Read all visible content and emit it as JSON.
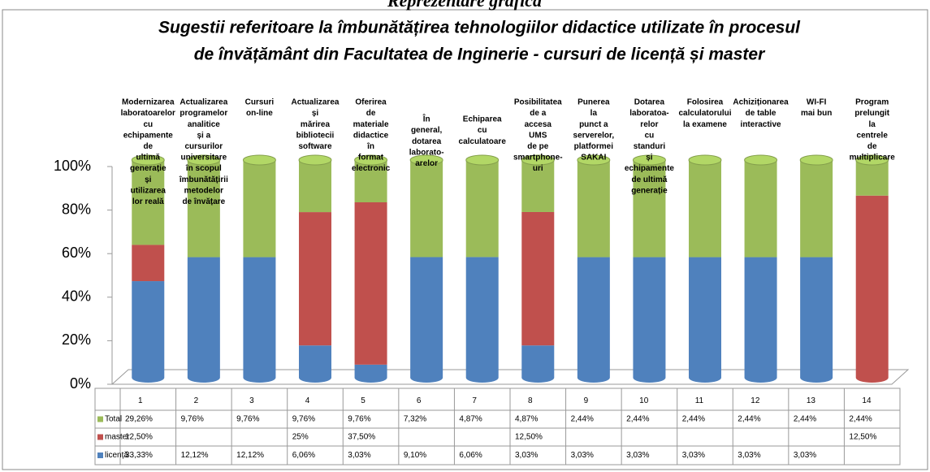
{
  "heading": "Reprezentare grafică",
  "chart_data": {
    "type": "stacked_percent_cylinder",
    "title": [
      "Sugestii referitoare la îmbunătățirea  tehnologiilor didactice utilizate în procesul",
      "de învățământ din Facultatea de Inginerie - cursuri de licență și master"
    ],
    "column_labels": [
      [
        "Modernizarea",
        "laboratoarelor",
        "cu",
        "echipamente",
        "de",
        "ultimă",
        "generație",
        "și",
        "utilizarea",
        "lor reală"
      ],
      [
        "Actualizarea",
        "programelor",
        "analitice",
        "și a",
        "cursurilor",
        "universitare",
        "în scopul",
        "îmbunătățirii",
        "metodelor",
        "de învățare"
      ],
      [
        "Cursuri",
        "on-line"
      ],
      [
        "Actualizarea",
        "și",
        "mărirea",
        "bibliotecii",
        "software"
      ],
      [
        "Oferirea",
        "de",
        "materiale",
        "didactice",
        "în",
        "format",
        "electronic"
      ],
      [
        "În",
        "general,",
        "dotarea",
        "laborato-",
        "arelor"
      ],
      [
        "Echiparea",
        "cu",
        "calculatoare"
      ],
      [
        "Posibilitatea",
        "de a",
        "accesa",
        "UMS",
        "de pe",
        "smartphone-",
        "uri"
      ],
      [
        "Punerea",
        "la",
        "punct a",
        "serverelor,",
        "platformei",
        "SAKAI"
      ],
      [
        "Dotarea",
        "laboratoa-",
        "relor",
        "cu",
        "standuri",
        "și",
        "echipamente",
        "de ultimă",
        "generație"
      ],
      [
        "Folosirea",
        "calculatorului",
        "la examene"
      ],
      [
        "Achiziționarea",
        "de table",
        "interactive"
      ],
      [
        "WI-FI",
        "mai bun"
      ],
      [
        "Program",
        "prelungit",
        "la",
        "centrele",
        "de",
        "multiplicare"
      ]
    ],
    "categories": [
      "1",
      "2",
      "3",
      "4",
      "5",
      "6",
      "7",
      "8",
      "9",
      "10",
      "11",
      "12",
      "13",
      "14"
    ],
    "series": [
      {
        "name": "Total",
        "color": "#9bbb59",
        "values": [
          29.26,
          9.76,
          9.76,
          9.76,
          9.76,
          7.32,
          4.87,
          4.87,
          2.44,
          2.44,
          2.44,
          2.44,
          2.44,
          2.44
        ],
        "value_labels": [
          "29,26%",
          "9,76%",
          "9,76%",
          "9,76%",
          "9,76%",
          "7,32%",
          "4,87%",
          "4,87%",
          "2,44%",
          "2,44%",
          "2,44%",
          "2,44%",
          "2,44%",
          "2,44%"
        ]
      },
      {
        "name": "master",
        "color": "#c0504d",
        "values": [
          12.5,
          null,
          null,
          25,
          37.5,
          null,
          null,
          12.5,
          null,
          null,
          null,
          null,
          null,
          12.5
        ],
        "value_labels": [
          "12,50%",
          null,
          null,
          "25%",
          "37,50%",
          null,
          null,
          "12,50%",
          null,
          null,
          null,
          null,
          null,
          "12,50%"
        ]
      },
      {
        "name": "licență",
        "color": "#4f81bd",
        "values": [
          33.33,
          12.12,
          12.12,
          6.06,
          3.03,
          9.1,
          6.06,
          3.03,
          3.03,
          3.03,
          3.03,
          3.03,
          3.03,
          null
        ],
        "value_labels": [
          "33,33%",
          "12,12%",
          "12,12%",
          "6,06%",
          "3,03%",
          "9,10%",
          "6,06%",
          "3,03%",
          "3,03%",
          "3,03%",
          "3,03%",
          "3,03%",
          "3,03%",
          null
        ]
      }
    ],
    "ylim": [
      0,
      100
    ],
    "yticks": [
      {
        "value": 0,
        "label": "0%"
      },
      {
        "value": 20,
        "label": "20%"
      },
      {
        "value": 40,
        "label": "40%"
      },
      {
        "value": 60,
        "label": "60%"
      },
      {
        "value": 80,
        "label": "80%"
      },
      {
        "value": 100,
        "label": "100%"
      }
    ]
  }
}
